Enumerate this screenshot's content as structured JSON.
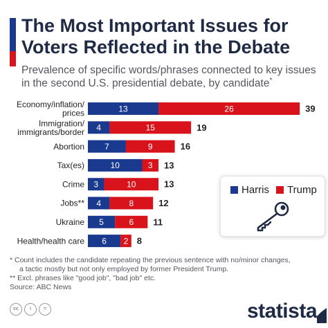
{
  "header": {
    "title": "The Most Important Issues for Voters Reflected in the Debate",
    "subtitle": "Prevalence of specific words/phrases connected to key issues in the second U.S. presidential debate, by candidate",
    "subtitle_marker": "*"
  },
  "colors": {
    "harris": "#1a3a8f",
    "trump": "#d9131b",
    "title": "#1f2a44"
  },
  "legend": {
    "harris": "Harris",
    "trump": "Trump",
    "icon": "key-icon"
  },
  "chart_data": {
    "type": "bar",
    "orientation": "horizontal",
    "stacked": true,
    "categories": [
      "Economy/inflation/\nprices",
      "Immigration/\nimmigrants/border",
      "Abortion",
      "Tax(es)",
      "Crime",
      "Jobs**",
      "Ukraine",
      "Health/health care"
    ],
    "series": [
      {
        "name": "Harris",
        "values": [
          13,
          4,
          7,
          10,
          3,
          4,
          5,
          6
        ]
      },
      {
        "name": "Trump",
        "values": [
          26,
          15,
          9,
          3,
          10,
          8,
          6,
          2
        ]
      }
    ],
    "totals": [
      39,
      19,
      16,
      13,
      13,
      12,
      11,
      8
    ],
    "xlim": [
      0,
      39
    ],
    "grid": false,
    "legend_position": "right"
  },
  "footnotes": {
    "line1": "*   Count includes the candidate repeating the previous sentence with no/minor changes,",
    "line2": "a tactic mostly but not only employed by former President Trump.",
    "line3": "** Excl. phrases like \"good job\", \"bad job\" etc.",
    "source": "Source: ABC News"
  },
  "footer": {
    "brand": "statista",
    "license_icons": [
      "cc-icon",
      "attribution-icon",
      "no-derivatives-icon"
    ],
    "license_text": [
      "cc",
      "i",
      "="
    ]
  }
}
